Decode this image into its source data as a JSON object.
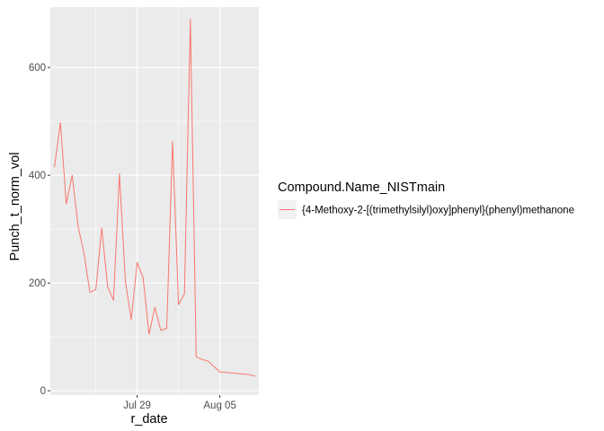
{
  "chart_data": {
    "type": "line",
    "xlabel": "r_date",
    "ylabel": "Punch_t_norm_vol",
    "x_tick_labels": [
      "Jul 29",
      "Aug 05"
    ],
    "x_tick_days": [
      7,
      14
    ],
    "y_ticks": [
      0,
      200,
      400,
      600
    ],
    "xlim_days": [
      -0.35,
      17.3
    ],
    "ylim": [
      -8,
      712
    ],
    "grid": true,
    "legend": {
      "title": "Compound.Name_NISTmain",
      "position": "right"
    },
    "series": [
      {
        "name": "{4-Methoxy-2-[(trimethylsilyl)oxy]phenyl}(phenyl)methanone",
        "color": "#F8766D",
        "x_days": [
          0.0,
          0.5,
          1.0,
          1.5,
          2.0,
          2.5,
          3.0,
          3.5,
          4.0,
          4.5,
          5.0,
          5.5,
          6.0,
          6.5,
          7.0,
          7.5,
          8.0,
          8.5,
          9.0,
          9.5,
          10.0,
          10.5,
          11.0,
          11.5,
          12.0,
          12.5,
          13.0,
          13.5,
          14.0,
          14.5,
          15.0,
          15.5,
          16.0,
          16.5,
          17.0
        ],
        "values": [
          415,
          498,
          347,
          400,
          305,
          255,
          183,
          188,
          302,
          193,
          168,
          403,
          203,
          132,
          238,
          210,
          105,
          155,
          112,
          116,
          463,
          160,
          180,
          690,
          63,
          58,
          55,
          45,
          35,
          34,
          33,
          32,
          31,
          30,
          27
        ]
      }
    ]
  }
}
